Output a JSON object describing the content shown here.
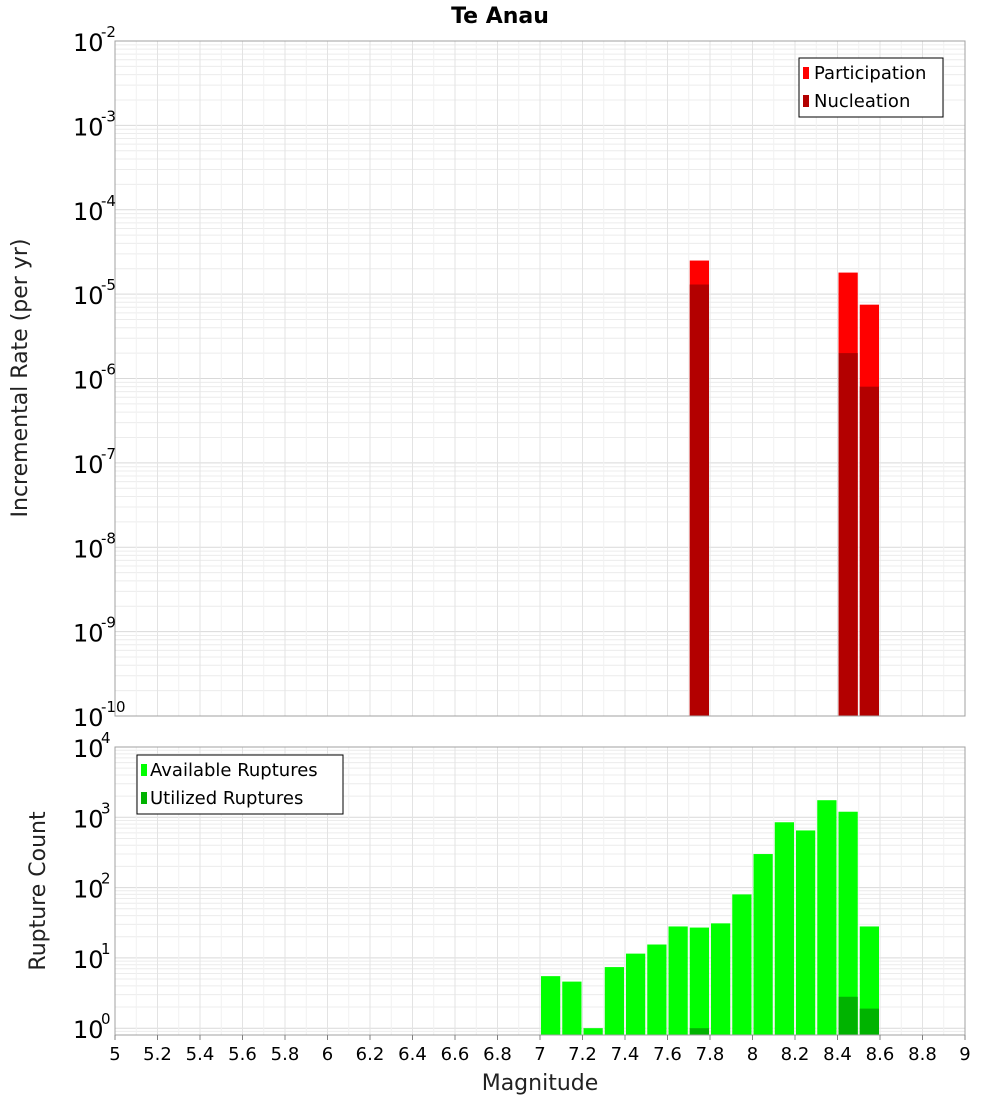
{
  "chart_data": [
    {
      "type": "bar",
      "title": "Te Anau",
      "ylabel": "Incremental Rate (per yr)",
      "xlabel": "",
      "yscale": "log",
      "ylim": [
        1e-10,
        0.01
      ],
      "xlim": [
        5,
        9
      ],
      "bin_width": 0.1,
      "legend_position": "top-right",
      "grid": true,
      "series": [
        {
          "name": "Participation",
          "color": "#ff0000",
          "x": [
            7.75,
            8.45,
            8.55
          ],
          "values": [
            2.5e-05,
            1.8e-05,
            7.5e-06
          ]
        },
        {
          "name": "Nucleation",
          "color": "#b30000",
          "x": [
            7.75,
            8.45,
            8.55
          ],
          "values": [
            1.3e-05,
            2e-06,
            8e-07
          ]
        }
      ],
      "y_ticks": [
        {
          "base": "10",
          "exp": "-2"
        },
        {
          "base": "10",
          "exp": "-3"
        },
        {
          "base": "10",
          "exp": "-4"
        },
        {
          "base": "10",
          "exp": "-5"
        },
        {
          "base": "10",
          "exp": "-6"
        },
        {
          "base": "10",
          "exp": "-7"
        },
        {
          "base": "10",
          "exp": "-8"
        },
        {
          "base": "10",
          "exp": "-9"
        },
        {
          "base": "10",
          "exp": "-10"
        }
      ]
    },
    {
      "type": "bar",
      "title": "",
      "ylabel": "Rupture Count",
      "xlabel": "Magnitude",
      "yscale": "log",
      "ylim": [
        0.8,
        10000
      ],
      "xlim": [
        5,
        9
      ],
      "bin_width": 0.1,
      "legend_position": "top-left",
      "grid": true,
      "series": [
        {
          "name": "Available Ruptures",
          "color": "#00ff00",
          "x": [
            7.05,
            7.15,
            7.25,
            7.35,
            7.45,
            7.55,
            7.65,
            7.75,
            7.85,
            7.95,
            8.05,
            8.15,
            8.25,
            8.35,
            8.45,
            8.55
          ],
          "values": [
            5.5,
            4.6,
            1.0,
            7.4,
            11.5,
            15.5,
            28,
            27,
            31,
            80,
            300,
            850,
            650,
            1750,
            1200,
            28
          ]
        },
        {
          "name": "Utilized Ruptures",
          "color": "#00b300",
          "x": [
            7.75,
            8.45,
            8.55
          ],
          "values": [
            1.0,
            2.8,
            1.9
          ]
        }
      ],
      "x_ticks": [
        "5",
        "5.2",
        "5.4",
        "5.6",
        "5.8",
        "6",
        "6.2",
        "6.4",
        "6.6",
        "6.8",
        "7",
        "7.2",
        "7.4",
        "7.6",
        "7.8",
        "8",
        "8.2",
        "8.4",
        "8.6",
        "8.8",
        "9"
      ],
      "y_ticks": [
        {
          "base": "10",
          "exp": "4"
        },
        {
          "base": "10",
          "exp": "3"
        },
        {
          "base": "10",
          "exp": "2"
        },
        {
          "base": "10",
          "exp": "1"
        },
        {
          "base": "10",
          "exp": "0"
        }
      ]
    }
  ]
}
